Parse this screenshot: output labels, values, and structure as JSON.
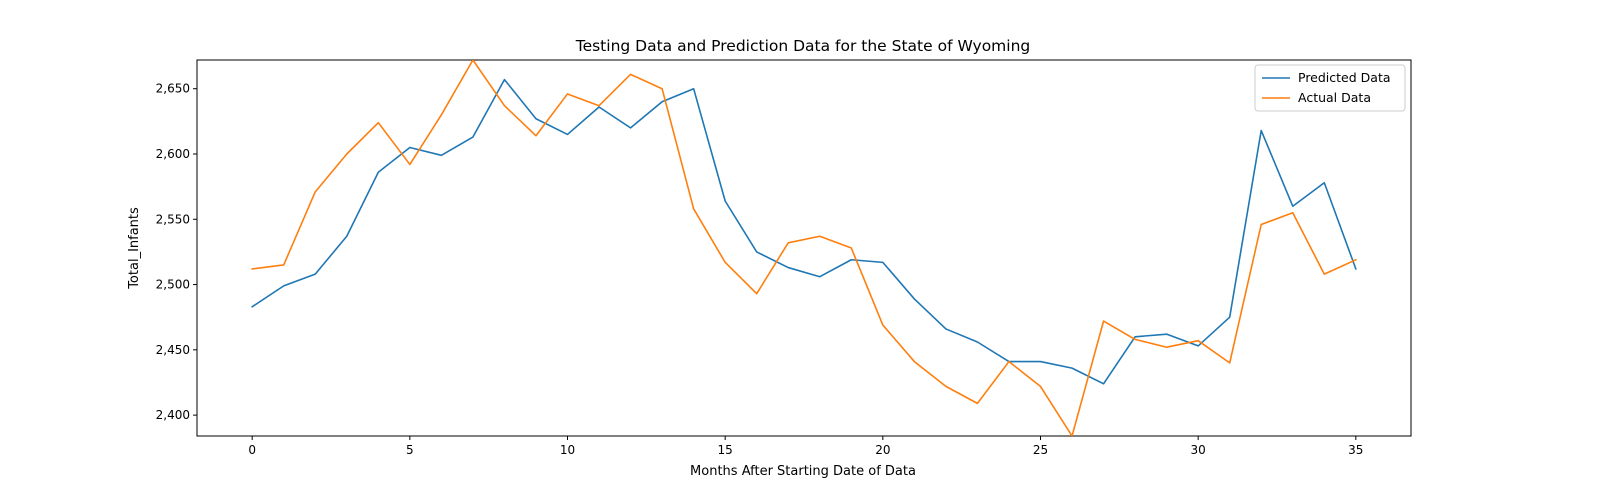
{
  "chart_data": {
    "type": "line",
    "title": "Testing Data and Prediction Data for the State of Wyoming",
    "xlabel": "Months After Starting Date of Data",
    "ylabel": "Total_Infants",
    "xlim": [
      -1.75,
      36.75
    ],
    "ylim": [
      2384,
      2672
    ],
    "x_ticks": [
      0,
      5,
      10,
      15,
      20,
      25,
      30,
      35
    ],
    "x_tick_labels": [
      "0",
      "5",
      "10",
      "15",
      "20",
      "25",
      "30",
      "35"
    ],
    "y_ticks": [
      2400,
      2450,
      2500,
      2550,
      2600,
      2650
    ],
    "y_tick_labels": [
      "2,400",
      "2,450",
      "2,500",
      "2,550",
      "2,600",
      "2,650"
    ],
    "grid": false,
    "legend_position": "top-right",
    "x": [
      0,
      1,
      2,
      3,
      4,
      5,
      6,
      7,
      8,
      9,
      10,
      11,
      12,
      13,
      14,
      15,
      16,
      17,
      18,
      19,
      20,
      21,
      22,
      23,
      24,
      25,
      26,
      27,
      28,
      29,
      30,
      31,
      32,
      33,
      34,
      35
    ],
    "series": [
      {
        "name": "Predicted Data",
        "color": "#1f77b4",
        "values": [
          2483,
          2499,
          2508,
          2537,
          2586,
          2605,
          2599,
          2613,
          2657,
          2627,
          2615,
          2636,
          2620,
          2640,
          2650,
          2564,
          2525,
          2513,
          2506,
          2519,
          2517,
          2489,
          2466,
          2456,
          2441,
          2441,
          2436,
          2424,
          2460,
          2462,
          2453,
          2475,
          2618,
          2560,
          2578,
          2512
        ]
      },
      {
        "name": "Actual Data",
        "color": "#ff7f0e",
        "values": [
          2512,
          2515,
          2571,
          2600,
          2624,
          2592,
          2630,
          2672,
          2637,
          2614,
          2646,
          2637,
          2661,
          2650,
          2558,
          2517,
          2493,
          2532,
          2537,
          2528,
          2469,
          2441,
          2422,
          2409,
          2441,
          2422,
          2384,
          2472,
          2458,
          2452,
          2457,
          2440,
          2546,
          2555,
          2508,
          2519
        ]
      }
    ]
  }
}
